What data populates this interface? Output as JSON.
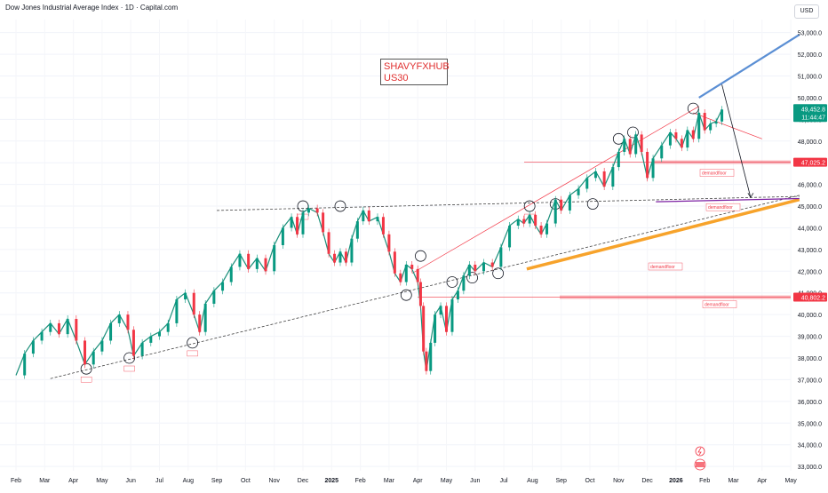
{
  "header": {
    "title": "Dow Jones Industrial Average Index · 1D · Capital.com",
    "currency": "USD"
  },
  "watermark": {
    "line1": "SHAVYFXHUB",
    "line2": "US30"
  },
  "price_tags": [
    {
      "price": "49,452.8",
      "countdown": "11:44:47",
      "color": "#089981"
    },
    {
      "price": "47,025.2",
      "color": "#f23645"
    },
    {
      "price": "40,802.2",
      "color": "#f23645"
    }
  ],
  "annotations": {
    "demandfloor": "demandfloor",
    "sub_tag": "\"FI/TH\""
  },
  "icons": [
    "lightning-icon",
    "us-flag-icon"
  ],
  "chart_data": {
    "type": "line",
    "title": "Dow Jones Industrial Average Index · 1D · Capital.com",
    "y_ticks": [
      33000,
      34000,
      35000,
      36000,
      37000,
      38000,
      39000,
      40000,
      41000,
      42000,
      43000,
      44000,
      45000,
      46000,
      47000,
      48000,
      49000,
      50000,
      51000,
      52000,
      53000
    ],
    "y_tick_labels": [
      "33,000.0",
      "34,000.0",
      "35,000.0",
      "36,000.0",
      "37,000.0",
      "38,000.0",
      "39,000.0",
      "40,000.0",
      "41,000.0",
      "42,000.0",
      "43,000.0",
      "44,000.0",
      "45,000.0",
      "46,000.0",
      "47,000.0",
      "48,000.0",
      "49,000.0",
      "50,000.0",
      "51,000.0",
      "52,000.0",
      "53,000.0"
    ],
    "ylim": [
      32800,
      53600
    ],
    "x_months": [
      "Feb",
      "Mar",
      "Apr",
      "May",
      "Jun",
      "Jul",
      "Aug",
      "Sep",
      "Oct",
      "Nov",
      "Dec",
      "2025",
      "Feb",
      "Mar",
      "Apr",
      "May",
      "Jun",
      "Jul",
      "Aug",
      "Sep",
      "Oct",
      "Nov",
      "Dec",
      "2026",
      "Feb",
      "Mar",
      "Apr",
      "May"
    ],
    "x_months_bold": [
      "2025",
      "2026"
    ],
    "x_month_index": [
      0,
      1,
      2,
      3,
      4,
      5,
      6,
      7,
      8,
      9,
      10,
      11,
      12,
      13,
      14,
      15,
      16,
      17,
      18,
      19,
      20,
      21,
      22,
      23,
      24,
      25,
      26,
      27
    ],
    "series": [
      {
        "values": [
          [
            0,
            37200
          ],
          [
            0.3,
            38200
          ],
          [
            0.6,
            38800
          ],
          [
            0.9,
            39200
          ],
          [
            1.2,
            39600
          ],
          [
            1.5,
            39100
          ],
          [
            1.8,
            39800
          ],
          [
            2.1,
            38800
          ],
          [
            2.4,
            37700
          ],
          [
            2.7,
            38300
          ],
          [
            3.0,
            38800
          ],
          [
            3.3,
            39600
          ],
          [
            3.6,
            40000
          ],
          [
            3.9,
            39300
          ],
          [
            4.1,
            38100
          ],
          [
            4.4,
            38700
          ],
          [
            4.7,
            39000
          ],
          [
            5.0,
            39200
          ],
          [
            5.3,
            39600
          ],
          [
            5.6,
            40700
          ],
          [
            5.9,
            41000
          ],
          [
            6.2,
            40000
          ],
          [
            6.4,
            39200
          ],
          [
            6.6,
            40500
          ],
          [
            6.9,
            41100
          ],
          [
            7.2,
            41500
          ],
          [
            7.5,
            42200
          ],
          [
            7.8,
            42800
          ],
          [
            8.1,
            42100
          ],
          [
            8.4,
            42600
          ],
          [
            8.7,
            42000
          ],
          [
            9.0,
            43200
          ],
          [
            9.3,
            44000
          ],
          [
            9.6,
            44500
          ],
          [
            9.8,
            43700
          ],
          [
            10.0,
            44700
          ],
          [
            10.2,
            44900
          ],
          [
            10.5,
            44700
          ],
          [
            10.7,
            43800
          ],
          [
            10.9,
            42800
          ],
          [
            11.1,
            42400
          ],
          [
            11.3,
            42900
          ],
          [
            11.5,
            42400
          ],
          [
            11.7,
            43500
          ],
          [
            11.9,
            44300
          ],
          [
            12.1,
            44800
          ],
          [
            12.3,
            44300
          ],
          [
            12.6,
            44500
          ],
          [
            12.8,
            43700
          ],
          [
            13.0,
            42900
          ],
          [
            13.2,
            41900
          ],
          [
            13.4,
            41500
          ],
          [
            13.6,
            42300
          ],
          [
            13.8,
            42100
          ],
          [
            14.0,
            41500
          ],
          [
            14.1,
            40400
          ],
          [
            14.2,
            38300
          ],
          [
            14.3,
            37400
          ],
          [
            14.45,
            38700
          ],
          [
            14.6,
            40000
          ],
          [
            14.8,
            40400
          ],
          [
            15.0,
            39200
          ],
          [
            15.2,
            40700
          ],
          [
            15.4,
            41100
          ],
          [
            15.6,
            41800
          ],
          [
            15.8,
            42300
          ],
          [
            16.0,
            42000
          ],
          [
            16.3,
            42400
          ],
          [
            16.6,
            42200
          ],
          [
            16.9,
            43100
          ],
          [
            17.2,
            44100
          ],
          [
            17.5,
            44400
          ],
          [
            17.7,
            44200
          ],
          [
            17.9,
            44600
          ],
          [
            18.1,
            44100
          ],
          [
            18.3,
            43700
          ],
          [
            18.5,
            44200
          ],
          [
            18.8,
            45300
          ],
          [
            19.0,
            44800
          ],
          [
            19.3,
            45500
          ],
          [
            19.6,
            45800
          ],
          [
            19.9,
            46300
          ],
          [
            20.2,
            46600
          ],
          [
            20.5,
            45900
          ],
          [
            20.8,
            46800
          ],
          [
            21.0,
            47500
          ],
          [
            21.2,
            48100
          ],
          [
            21.4,
            47400
          ],
          [
            21.6,
            48300
          ],
          [
            21.8,
            47500
          ],
          [
            22.0,
            46300
          ],
          [
            22.2,
            47200
          ],
          [
            22.5,
            47800
          ],
          [
            22.8,
            48400
          ],
          [
            23.0,
            48100
          ],
          [
            23.2,
            47700
          ],
          [
            23.4,
            48500
          ],
          [
            23.6,
            48100
          ],
          [
            23.8,
            49300
          ],
          [
            24.0,
            48500
          ],
          [
            24.2,
            48800
          ],
          [
            24.4,
            48900
          ],
          [
            24.6,
            49452.8
          ]
        ]
      }
    ],
    "levels": [
      {
        "y": 47025.2,
        "color": "#f23645",
        "label": "demandfloor"
      },
      {
        "y": 40802.2,
        "color": "#f23645",
        "label": "demandfloor"
      },
      {
        "y": 45200,
        "color": "#7b1fa2",
        "label": "demandfloor"
      }
    ],
    "projection": {
      "from": [
        24.6,
        50600
      ],
      "to": [
        25.6,
        45400
      ]
    }
  }
}
